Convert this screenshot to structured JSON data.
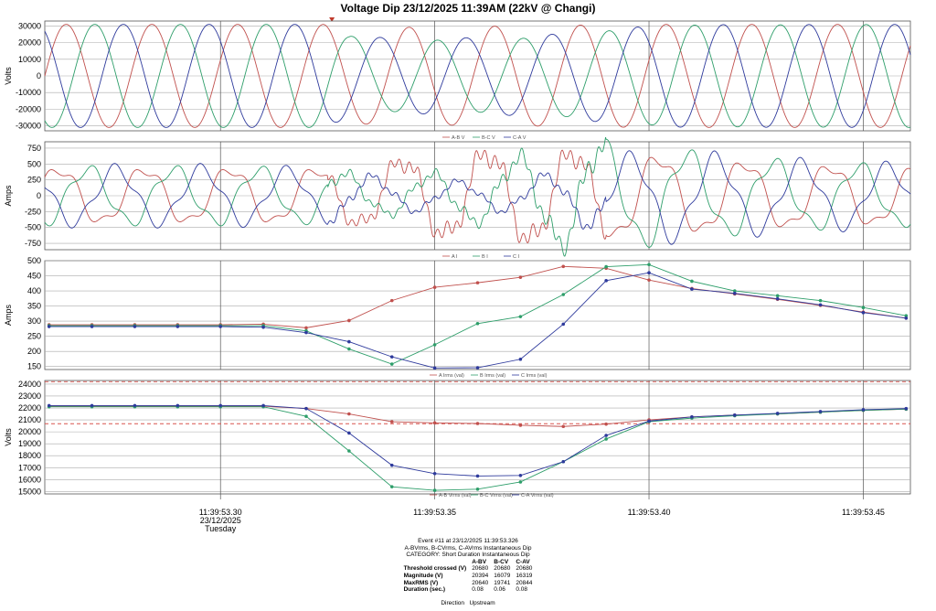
{
  "title": "Voltage Dip 23/12/2025 11:39AM (22kV @ Changi)",
  "time_axis": {
    "labels": [
      "11:39:53.30",
      "11:39:53.35",
      "11:39:53.40",
      "11:39:53.45"
    ],
    "values": [
      53.3,
      53.35,
      53.4,
      53.45
    ],
    "date_label": "23/12/2025",
    "day_label": "Tuesday",
    "range": [
      53.259,
      53.461
    ]
  },
  "trigger_marker_time": 53.326,
  "colors": {
    "A": "#c0504d",
    "B": "#2e9e6a",
    "C": "#2e3a9c",
    "thresh": "#d9534f"
  },
  "chart_data": [
    {
      "type": "line",
      "ylabel": "Volts",
      "ylim": [
        -33000,
        33000
      ],
      "yticks": [
        30000,
        20000,
        10000,
        0,
        -10000,
        -20000,
        -30000
      ],
      "legend": [
        "A-B V",
        "B-C V",
        "C-A V"
      ],
      "waveform": {
        "frequency_hz": 50,
        "phase_shifts_deg": [
          0,
          -120,
          120
        ],
        "amplitude_points": {
          "t": [
            53.259,
            53.324,
            53.33,
            53.338,
            53.35,
            53.36,
            53.375,
            53.39,
            53.405,
            53.461
          ],
          "A": [
            31000,
            31000,
            29000,
            29000,
            29500,
            29800,
            30200,
            30800,
            31000,
            31000
          ],
          "B": [
            31000,
            31000,
            24000,
            21500,
            21500,
            21800,
            23000,
            27000,
            30500,
            31000
          ],
          "C": [
            31000,
            31000,
            25000,
            23000,
            22800,
            23000,
            24500,
            28000,
            30800,
            31000
          ]
        }
      }
    },
    {
      "type": "line",
      "ylabel": "Amps",
      "ylim": [
        -850,
        850
      ],
      "yticks": [
        750,
        500,
        250,
        0,
        -250,
        -500,
        -750
      ],
      "legend": [
        "A I",
        "B I",
        "C I"
      ],
      "waveform": {
        "frequency_hz": 50,
        "phase_shifts_deg": [
          30,
          -90,
          150
        ],
        "amplitude_points": {
          "t": [
            53.259,
            53.3,
            53.325,
            53.335,
            53.345,
            53.36,
            53.372,
            53.385,
            53.4,
            53.42,
            53.44,
            53.461
          ],
          "A": [
            420,
            420,
            420,
            480,
            600,
            690,
            720,
            680,
            620,
            530,
            470,
            440
          ],
          "B": [
            420,
            420,
            400,
            260,
            300,
            400,
            620,
            820,
            720,
            560,
            480,
            440
          ],
          "C": [
            420,
            420,
            380,
            280,
            220,
            200,
            250,
            420,
            660,
            560,
            480,
            440
          ]
        }
      }
    },
    {
      "type": "line",
      "ylabel": "Amps",
      "ylim": [
        140,
        500
      ],
      "yticks": [
        500,
        450,
        400,
        350,
        300,
        250,
        200,
        150
      ],
      "legend": [
        "A Irms (val)",
        "B Irms (val)",
        "C Irms (val)"
      ],
      "x": [
        53.26,
        53.27,
        53.28,
        53.29,
        53.3,
        53.31,
        53.32,
        53.33,
        53.34,
        53.35,
        53.36,
        53.37,
        53.38,
        53.39,
        53.4,
        53.41,
        53.42,
        53.43,
        53.44,
        53.45,
        53.46
      ],
      "series": [
        {
          "name": "A Irms (val)",
          "values": [
            288,
            288,
            288,
            288,
            288,
            290,
            278,
            302,
            368,
            412,
            427,
            445,
            481,
            475,
            436,
            408,
            390,
            372,
            352,
            330,
            310
          ]
        },
        {
          "name": "B Irms (val)",
          "values": [
            285,
            285,
            285,
            285,
            285,
            285,
            268,
            208,
            158,
            222,
            292,
            315,
            388,
            480,
            487,
            432,
            400,
            384,
            368,
            345,
            318
          ]
        },
        {
          "name": "C Irms (val)",
          "values": [
            282,
            282,
            282,
            282,
            282,
            280,
            262,
            232,
            182,
            145,
            146,
            174,
            290,
            434,
            460,
            406,
            392,
            374,
            354,
            328,
            310
          ]
        }
      ]
    },
    {
      "type": "line",
      "ylabel": "Volts",
      "ylim": [
        14800,
        24300
      ],
      "yticks": [
        24000,
        23000,
        22000,
        21000,
        20000,
        19000,
        18000,
        17000,
        16000,
        15000
      ],
      "legend": [
        "A-B Vrms (val)",
        "B-C Vrms (val)",
        "C-A Vrms (val)"
      ],
      "thresholds": [
        24200,
        20680
      ],
      "x": [
        53.26,
        53.27,
        53.28,
        53.29,
        53.3,
        53.31,
        53.32,
        53.33,
        53.34,
        53.35,
        53.36,
        53.37,
        53.38,
        53.39,
        53.4,
        53.41,
        53.42,
        53.43,
        53.44,
        53.45,
        53.46
      ],
      "series": [
        {
          "name": "A-B Vrms (val)",
          "values": [
            22150,
            22150,
            22150,
            22150,
            22150,
            22150,
            21950,
            21500,
            20850,
            20750,
            20700,
            20550,
            20450,
            20650,
            21000,
            21250,
            21400,
            21500,
            21650,
            21800,
            21900
          ]
        },
        {
          "name": "B-C Vrms (val)",
          "values": [
            22100,
            22100,
            22100,
            22100,
            22100,
            22100,
            21300,
            18400,
            15400,
            15100,
            15200,
            15800,
            17500,
            19400,
            20850,
            21150,
            21350,
            21500,
            21650,
            21800,
            21900
          ]
        },
        {
          "name": "C-A Vrms (val)",
          "values": [
            22200,
            22200,
            22200,
            22200,
            22200,
            22200,
            21950,
            19900,
            17200,
            16500,
            16300,
            16350,
            17500,
            19700,
            20900,
            21250,
            21400,
            21550,
            21700,
            21850,
            21950
          ]
        }
      ]
    }
  ],
  "event": {
    "line1": "Event #11 at 23/12/2025 11:39:53.326",
    "line2": "A-BVrms, B-CVrms, C-AVrms Instantaneous Dip",
    "line3": "CATEGORY: Short Duration Instantaneous Dip",
    "headers": [
      "A-BV",
      "B-CV",
      "C-AV"
    ],
    "rows": [
      {
        "label": "Threshold crossed (V)",
        "values": [
          "20680",
          "20680",
          "20680"
        ]
      },
      {
        "label": "Magnitude (V)",
        "values": [
          "20394",
          "16079",
          "16319"
        ]
      },
      {
        "label": "MaxRMS (V)",
        "values": [
          "20640",
          "19741",
          "20844"
        ]
      },
      {
        "label": "Duration (sec.)",
        "values": [
          "0.08",
          "0.06",
          "0.08"
        ]
      }
    ],
    "direction_label": "Direction",
    "direction_value": "Upstream"
  }
}
